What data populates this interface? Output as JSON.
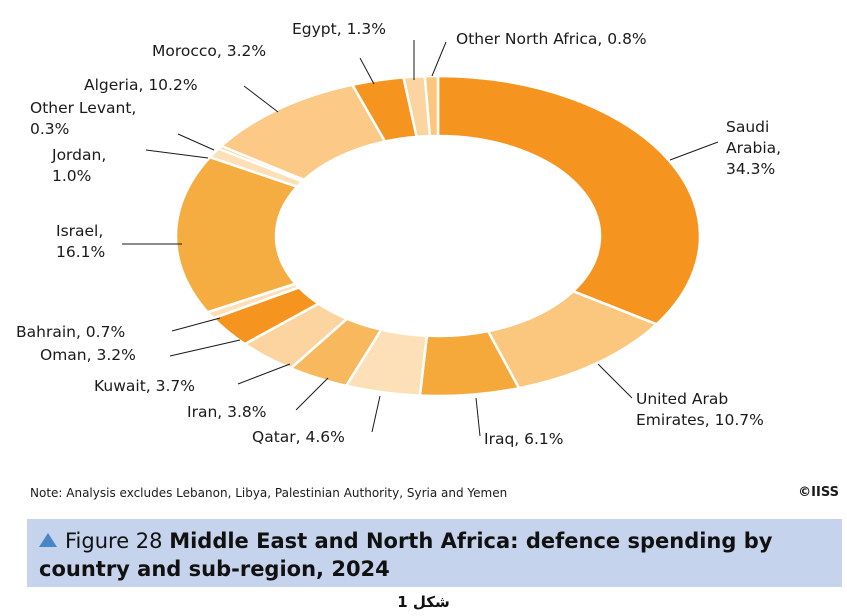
{
  "chart_data": {
    "type": "donut",
    "unit": "%",
    "slices": [
      {
        "name": "Saudi Arabia",
        "value": 34.3,
        "label_lines": [
          "Saudi",
          "Arabia,",
          "34.3%"
        ],
        "color": "#f5951f"
      },
      {
        "name": "United Arab Emirates",
        "value": 10.7,
        "label_lines": [
          "United Arab",
          "Emirates, 10.7%"
        ],
        "color": "#fbc77f"
      },
      {
        "name": "Iraq",
        "value": 6.1,
        "label_lines": [
          "Iraq, 6.1%"
        ],
        "color": "#f5a93a"
      },
      {
        "name": "Qatar",
        "value": 4.6,
        "label_lines": [
          "Qatar, 4.6%"
        ],
        "color": "#fde0b8"
      },
      {
        "name": "Iran",
        "value": 3.8,
        "label_lines": [
          "Iran, 3.8%"
        ],
        "color": "#f8b85e"
      },
      {
        "name": "Kuwait",
        "value": 3.7,
        "label_lines": [
          "Kuwait, 3.7%"
        ],
        "color": "#fcd4a0"
      },
      {
        "name": "Oman",
        "value": 3.2,
        "label_lines": [
          "Oman, 3.2%"
        ],
        "color": "#f5951f"
      },
      {
        "name": "Bahrain",
        "value": 0.7,
        "label_lines": [
          "Bahrain, 0.7%"
        ],
        "color": "#fde0b8"
      },
      {
        "name": "Israel",
        "value": 16.1,
        "label_lines": [
          "Israel,",
          "16.1%"
        ],
        "color": "#f5ac40"
      },
      {
        "name": "Jordan",
        "value": 1.0,
        "label_lines": [
          "Jordan,",
          "1.0%"
        ],
        "color": "#fde0b8"
      },
      {
        "name": "Other Levant",
        "value": 0.3,
        "label_lines": [
          "Other Levant,",
          "0.3%"
        ],
        "color": "#f8b85e"
      },
      {
        "name": "Algeria",
        "value": 10.2,
        "label_lines": [
          "Algeria, 10.2%"
        ],
        "color": "#fcc987"
      },
      {
        "name": "Morocco",
        "value": 3.2,
        "label_lines": [
          "Morocco, 3.2%"
        ],
        "color": "#f5951f"
      },
      {
        "name": "Egypt",
        "value": 1.3,
        "label_lines": [
          "Egypt, 1.3%"
        ],
        "color": "#fcd4a0"
      },
      {
        "name": "Other North Africa",
        "value": 0.8,
        "label_lines": [
          "Other North Africa, 0.8%"
        ],
        "color": "#fbc77f"
      }
    ]
  },
  "note": "Note: Analysis excludes Lebanon, Libya, Palestinian Authority, Syria and Yemen",
  "copyright": "©IISS",
  "caption": {
    "figure_label": "Figure 28",
    "title": "Middle East and North Africa: defence spending by country and sub-region, 2024"
  },
  "subcaption": "شكل 1"
}
